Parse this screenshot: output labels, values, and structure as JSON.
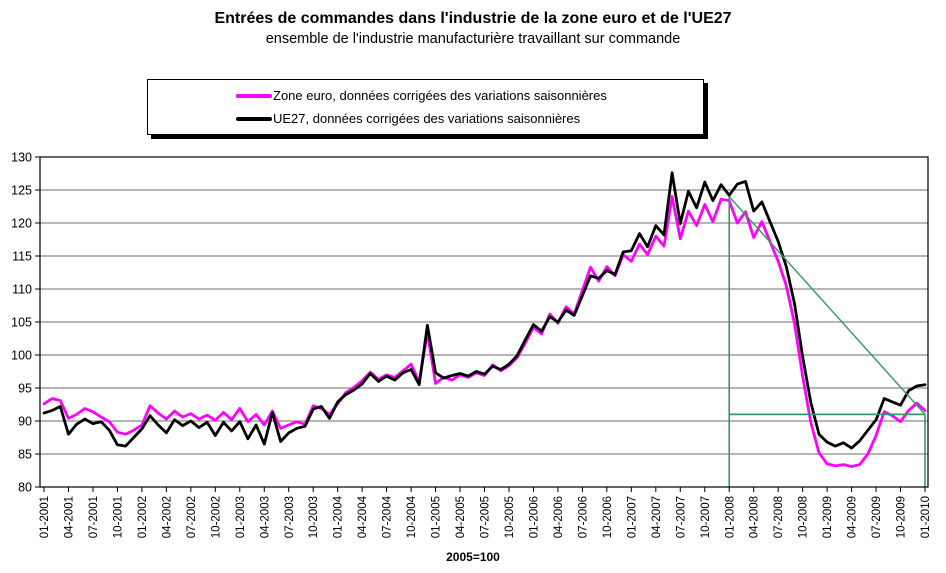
{
  "title": "Entrées de commandes dans l'industrie de la zone euro et de l'UE27",
  "subtitle": "ensemble de l'industrie manufacturière travaillant sur commande",
  "legend": {
    "items": [
      {
        "label": "Zone euro, données corrigées des variations saisonnières",
        "color": "#FF00FF"
      },
      {
        "label": "UE27, données corrigées des variations saisonnières",
        "color": "#000000"
      }
    ]
  },
  "chart_data": {
    "type": "line",
    "title": "Entrées de commandes dans l'industrie de la zone euro et de l'UE27",
    "subtitle": "ensemble de l'industrie manufacturière travaillant sur commande",
    "axis_note": "2005=100",
    "x_frequency": "monthly",
    "x_start": "01-2001",
    "x_end": "01-2010",
    "ylim": [
      80,
      130
    ],
    "ytick_step": 5,
    "grid": "horizontal",
    "legend_position": "top",
    "x_tick_labels": [
      "01-2001",
      "04-2001",
      "07-2001",
      "10-2001",
      "01-2002",
      "04-2002",
      "07-2002",
      "10-2002",
      "01-2003",
      "04-2003",
      "07-2003",
      "10-2003",
      "01-2004",
      "04-2004",
      "07-2004",
      "10-2004",
      "01-2005",
      "04-2005",
      "07-2005",
      "10-2005",
      "01-2006",
      "04-2006",
      "07-2006",
      "10-2006",
      "01-2007",
      "04-2007",
      "07-2007",
      "10-2007",
      "01-2008",
      "04-2008",
      "07-2008",
      "10-2008",
      "01-2009",
      "04-2009",
      "07-2009",
      "10-2009",
      "01-2010"
    ],
    "series": [
      {
        "id": "zone-euro",
        "name": "Zone euro, données corrigées des variations saisonnières",
        "color": "#FF00FF",
        "values": [
          92.6,
          93.4,
          93.1,
          90.4,
          91.0,
          91.9,
          91.4,
          90.6,
          89.9,
          88.3,
          88.0,
          88.6,
          89.4,
          92.3,
          91.2,
          90.3,
          91.5,
          90.6,
          91.1,
          90.3,
          90.9,
          90.1,
          91.3,
          90.2,
          91.9,
          89.9,
          91.0,
          89.4,
          91.5,
          88.9,
          89.4,
          89.9,
          89.5,
          92.3,
          91.9,
          91.0,
          92.6,
          94.3,
          95.1,
          96.1,
          97.4,
          96.3,
          97.0,
          96.6,
          97.6,
          98.6,
          95.9,
          103.4,
          95.7,
          96.6,
          96.2,
          97.0,
          96.6,
          97.3,
          96.9,
          98.5,
          97.6,
          98.4,
          99.6,
          101.8,
          104.2,
          103.2,
          106.2,
          104.8,
          107.3,
          106.2,
          109.8,
          113.3,
          111.2,
          113.4,
          112.0,
          115.2,
          114.2,
          116.8,
          115.2,
          118.0,
          116.5,
          124.0,
          117.6,
          121.8,
          119.6,
          122.8,
          120.2,
          123.6,
          123.4,
          120.0,
          121.7,
          117.8,
          120.2,
          117.2,
          114.2,
          110.5,
          104.8,
          96.8,
          89.8,
          85.2,
          83.5,
          83.2,
          83.4,
          83.1,
          83.4,
          85.0,
          87.8,
          91.4,
          90.8,
          89.9,
          91.6,
          92.7,
          91.6
        ]
      },
      {
        "id": "ue27",
        "name": "UE27, données corrigées des variations saisonnières",
        "color": "#000000",
        "values": [
          91.2,
          91.6,
          92.2,
          88.0,
          89.5,
          90.3,
          89.6,
          89.9,
          88.6,
          86.4,
          86.2,
          87.5,
          88.8,
          90.8,
          89.4,
          88.2,
          90.2,
          89.3,
          90.0,
          89.0,
          89.8,
          87.8,
          89.8,
          88.5,
          89.9,
          87.3,
          89.4,
          86.5,
          91.3,
          86.9,
          88.2,
          88.9,
          89.2,
          91.8,
          92.2,
          90.4,
          92.9,
          94.0,
          94.7,
          95.6,
          97.2,
          96.0,
          96.8,
          96.2,
          97.3,
          97.8,
          95.5,
          104.5,
          97.3,
          96.5,
          96.9,
          97.2,
          96.8,
          97.5,
          97.1,
          98.3,
          97.8,
          98.6,
          99.9,
          102.3,
          104.6,
          103.6,
          105.8,
          105.0,
          106.8,
          106.0,
          109.0,
          112.0,
          111.6,
          112.8,
          112.2,
          115.6,
          115.8,
          118.4,
          116.4,
          119.6,
          118.2,
          127.6,
          119.9,
          124.8,
          122.3,
          126.2,
          123.4,
          125.8,
          124.2,
          125.9,
          126.3,
          121.8,
          123.2,
          120.2,
          117.2,
          113.4,
          107.8,
          99.8,
          92.8,
          88.0,
          86.8,
          86.2,
          86.7,
          85.9,
          87.0,
          88.6,
          90.2,
          93.4,
          92.9,
          92.4,
          94.6,
          95.3,
          95.5
        ]
      }
    ],
    "annotations": {
      "color": "#339966",
      "vertical_lines": [
        {
          "x": "01-2008",
          "y_from": 80,
          "y_to": 124
        },
        {
          "x": "01-2010",
          "y_from": 80,
          "y_to": 91
        }
      ],
      "horizontal_lines": [
        {
          "y": 91,
          "x_from": "01-2008",
          "x_to": "01-2010"
        }
      ],
      "diagonal_lines": [
        {
          "from": {
            "x": "01-2008",
            "y": 124
          },
          "to": {
            "x": "01-2010",
            "y": 91
          }
        }
      ]
    }
  }
}
